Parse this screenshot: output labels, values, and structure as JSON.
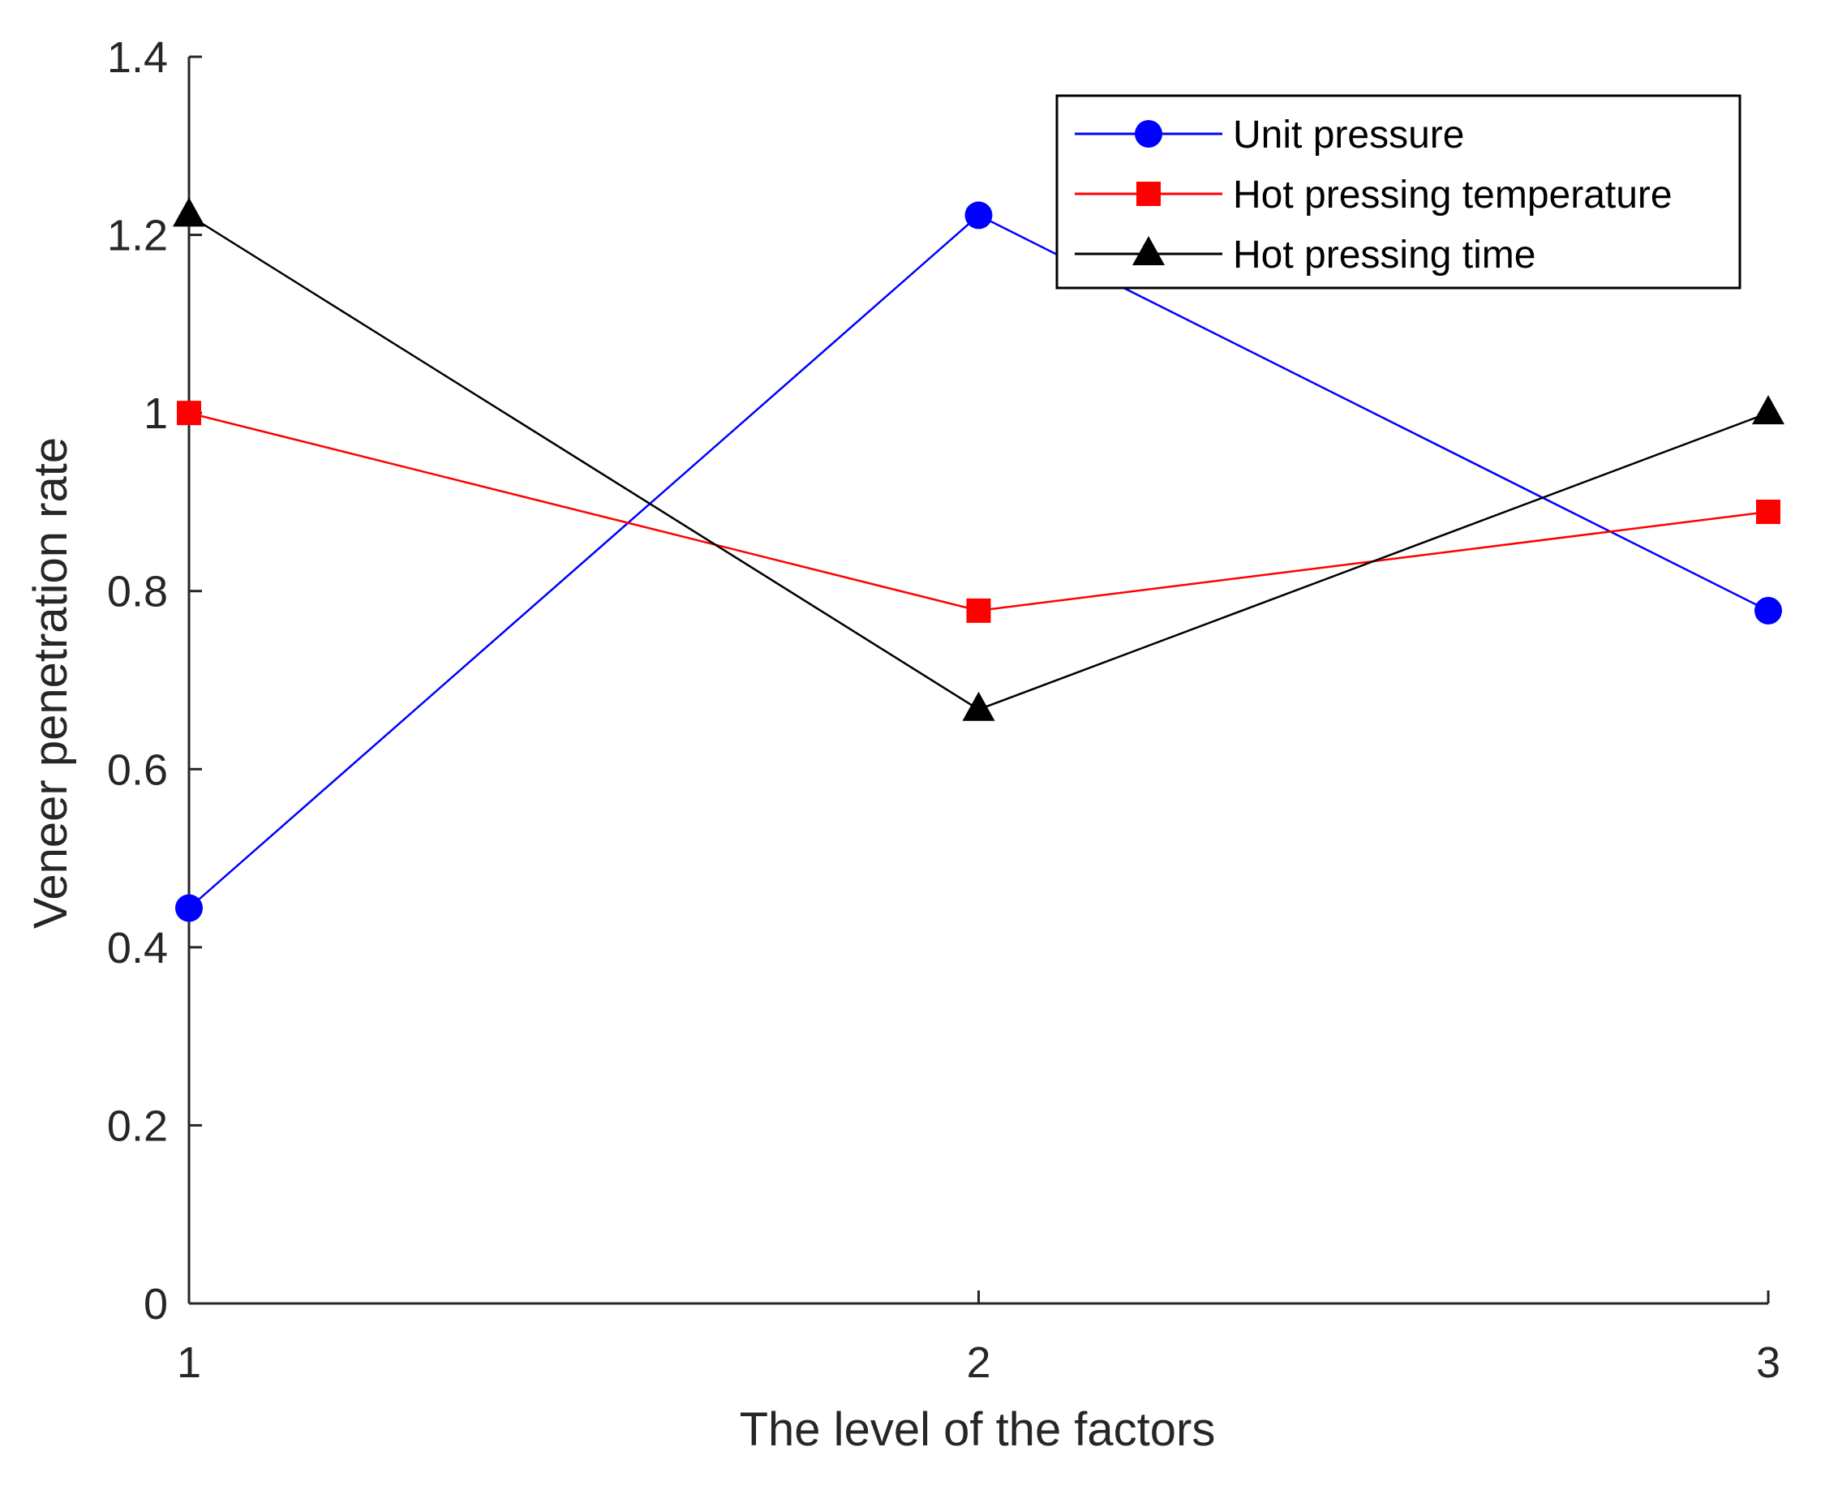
{
  "chart_data": {
    "type": "line",
    "title": "",
    "xlabel": "The level of the factors",
    "ylabel": "Veneer penetration rate",
    "x": [
      1,
      2,
      3
    ],
    "xlim": [
      1,
      3
    ],
    "ylim": [
      0,
      1.4
    ],
    "x_ticks": [
      "1",
      "2",
      "3"
    ],
    "y_ticks": [
      "0",
      "0.2",
      "0.4",
      "0.6",
      "0.8",
      "1",
      "1.2",
      "1.4"
    ],
    "y_tick_values": [
      0,
      0.2,
      0.4,
      0.6,
      0.8,
      1.0,
      1.2,
      1.4
    ],
    "grid": false,
    "legend_position": "top-right",
    "series": [
      {
        "name": "Unit pressure",
        "values": [
          0.444,
          1.222,
          0.778
        ],
        "color": "#0000ff",
        "marker": "circle"
      },
      {
        "name": "Hot pressing temperature",
        "values": [
          1.0,
          0.778,
          0.889
        ],
        "color": "#ff0000",
        "marker": "square"
      },
      {
        "name": "Hot pressing time",
        "values": [
          1.222,
          0.667,
          1.0
        ],
        "color": "#000000",
        "marker": "triangle"
      }
    ]
  }
}
